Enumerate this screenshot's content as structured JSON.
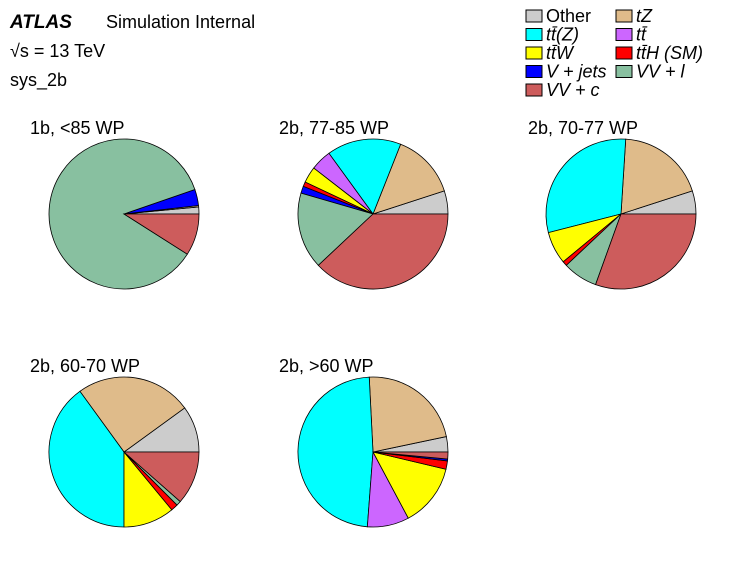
{
  "header": {
    "atlas": "ATLAS",
    "status": "Simulation Internal",
    "energy_sqrt": "√s",
    "energy_rest": " = 13 TeV",
    "tag": "sys_2b"
  },
  "legend": [
    {
      "label": "Other",
      "color": "#cccccc",
      "italic": false
    },
    {
      "label": "tZ",
      "color": "#dfbb8a",
      "italic": true
    },
    {
      "label": "tt̄(Z)",
      "color": "#00ffff",
      "italic": true
    },
    {
      "label": "tt̄",
      "color": "#cc66ff",
      "italic": true
    },
    {
      "label": "tt̄W",
      "color": "#ffff00",
      "italic": true
    },
    {
      "label": "tt̄H (SM)",
      "color": "#ff0000",
      "italic": true
    },
    {
      "label": "V + jets",
      "color": "#0000ff",
      "italic": true
    },
    {
      "label": "VV + l",
      "color": "#88c0a0",
      "italic": true
    },
    {
      "label": "VV + c",
      "color": "#cd5c5c",
      "italic": true
    }
  ],
  "chart_data": {
    "type": "pie",
    "charts": [
      {
        "title": "1b, <85 WP",
        "values": [
          1.5,
          0.3,
          0,
          0,
          0,
          0,
          3.5,
          85.7,
          9.0
        ]
      },
      {
        "title": "2b, 77-85 WP",
        "values": [
          5.0,
          14.0,
          16.0,
          4.5,
          3.5,
          1.0,
          1.5,
          16.5,
          38.0
        ]
      },
      {
        "title": "2b, 70-77 WP",
        "values": [
          5.0,
          19.0,
          30.0,
          0,
          7.0,
          1.0,
          0,
          7.5,
          30.5
        ]
      },
      {
        "title": "2b, 60-70 WP",
        "values": [
          10.0,
          25.0,
          40.0,
          0,
          11.0,
          1.5,
          0,
          1.0,
          11.5
        ]
      },
      {
        "title": "2b, >60 WP",
        "values": [
          3.3,
          22.5,
          48.0,
          9.0,
          13.5,
          1.8,
          0.4,
          0,
          1.5
        ]
      }
    ]
  }
}
